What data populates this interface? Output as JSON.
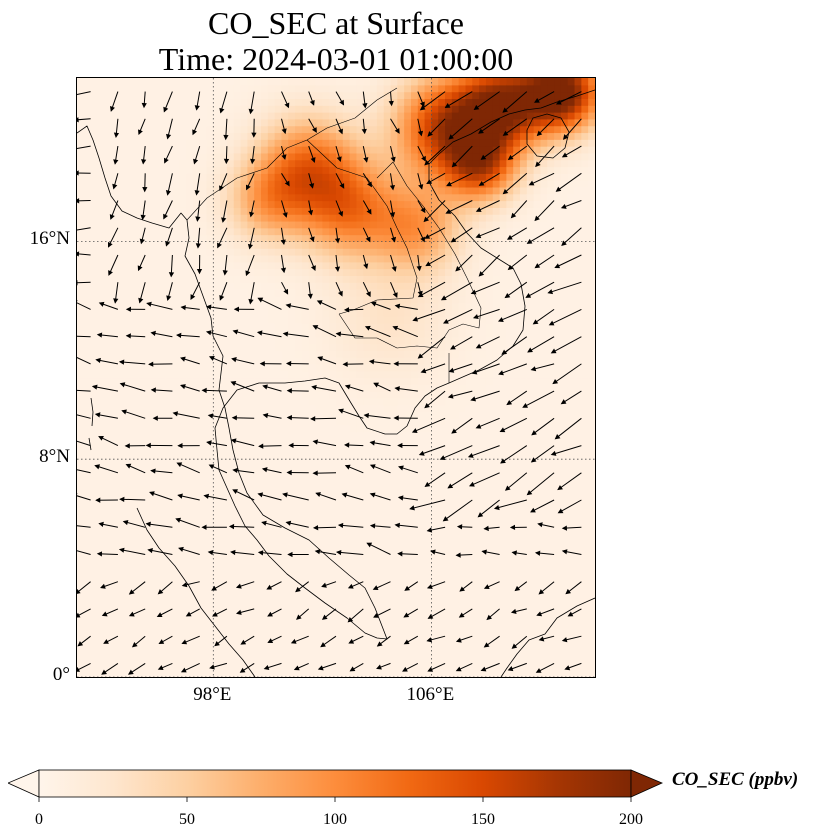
{
  "title": {
    "line1": "CO_SEC at Surface",
    "line2": "Time: 2024-03-01 01:00:00"
  },
  "map": {
    "projection": "PlateCarree",
    "lon_range": [
      93,
      112
    ],
    "lat_range": [
      0,
      22
    ],
    "gridlines": "dotted",
    "lat_ticks": [
      {
        "value": 16,
        "label": "16°N"
      },
      {
        "value": 8,
        "label": "8°N"
      },
      {
        "value": 0,
        "label": "0°"
      }
    ],
    "lon_ticks": [
      {
        "value": 98,
        "label": "98°E"
      },
      {
        "value": 106,
        "label": "106°E"
      }
    ],
    "field_name": "CO_SEC",
    "colormap": [
      "#fff5eb",
      "#fee6ce",
      "#fdd0a2",
      "#fdae6b",
      "#fd8d3c",
      "#f16913",
      "#d94801",
      "#a63603",
      "#7f2704"
    ],
    "plumes": [
      {
        "lon": 110.8,
        "lat": 21.5,
        "value": 200,
        "spread": 1.4
      },
      {
        "lon": 108.6,
        "lat": 21.0,
        "value": 170,
        "spread": 1.6
      },
      {
        "lon": 106.5,
        "lat": 20.2,
        "value": 150,
        "spread": 1.8
      },
      {
        "lon": 107.8,
        "lat": 18.8,
        "value": 125,
        "spread": 1.3
      },
      {
        "lon": 101.5,
        "lat": 18.8,
        "value": 105,
        "spread": 1.8
      },
      {
        "lon": 103.0,
        "lat": 17.2,
        "value": 100,
        "spread": 1.8
      },
      {
        "lon": 105.5,
        "lat": 16.5,
        "value": 80,
        "spread": 1.6
      },
      {
        "lon": 100.0,
        "lat": 17.5,
        "value": 70,
        "spread": 1.5
      },
      {
        "lon": 104.5,
        "lat": 13.2,
        "value": 22,
        "spread": 2.2
      }
    ],
    "wind_regions": [
      {
        "lon": [
          94,
          100
        ],
        "lat": [
          14,
          22
        ],
        "u": -0.15,
        "v": -0.6,
        "speed": 0.6
      },
      {
        "lon": [
          100,
          106
        ],
        "lat": [
          14,
          22
        ],
        "u": 0.1,
        "v": -0.3,
        "speed": 0.4
      },
      {
        "lon": [
          106,
          112
        ],
        "lat": [
          15,
          22
        ],
        "u": -0.8,
        "v": -0.55,
        "speed": 1.0
      },
      {
        "lon": [
          106,
          112
        ],
        "lat": [
          6,
          15
        ],
        "u": -0.85,
        "v": -0.45,
        "speed": 1.2
      },
      {
        "lon": [
          93,
          106
        ],
        "lat": [
          4,
          14
        ],
        "u": -0.9,
        "v": 0.2,
        "speed": 0.8
      },
      {
        "lon": [
          93,
          112
        ],
        "lat": [
          0,
          4
        ],
        "u": -0.4,
        "v": -0.2,
        "speed": 0.5
      }
    ]
  },
  "colorbar": {
    "label": "CO_SEC (ppbv)",
    "min": 0,
    "max": 200,
    "extend": "both",
    "ticks": [
      {
        "value": 0,
        "label": "0"
      },
      {
        "value": 50,
        "label": "50"
      },
      {
        "value": 100,
        "label": "100"
      },
      {
        "value": 150,
        "label": "150"
      },
      {
        "value": 200,
        "label": "200"
      }
    ]
  }
}
